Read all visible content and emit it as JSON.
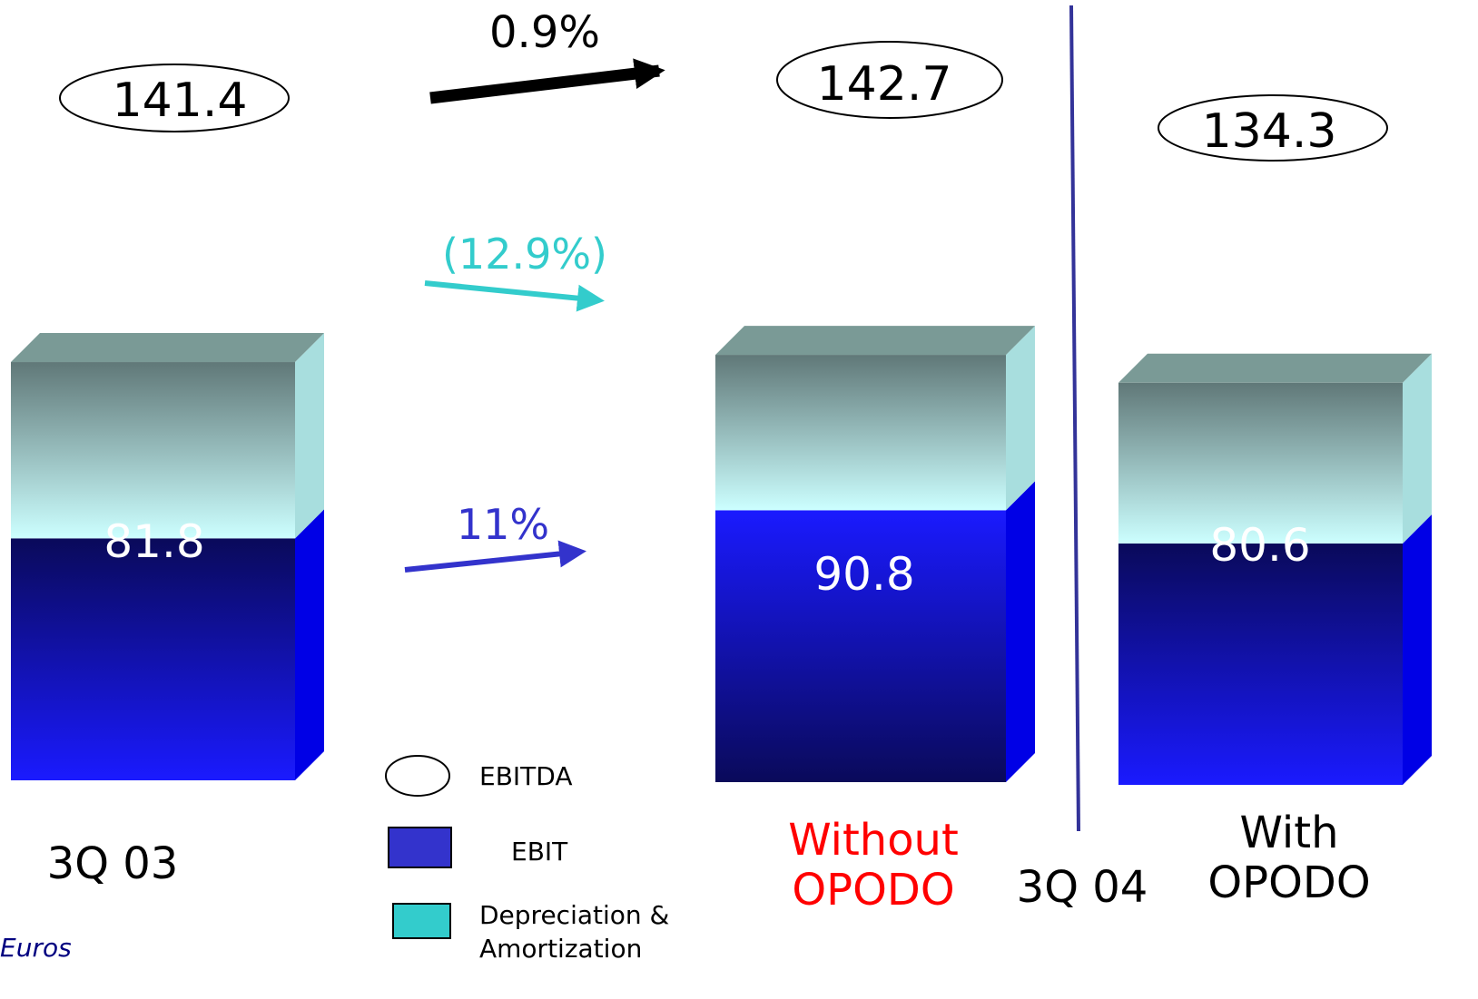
{
  "chart_data": {
    "type": "bar",
    "stacked": true,
    "style": "3d",
    "categories": [
      "3Q 03",
      "3Q 04 Without OPODO",
      "3Q 04 With OPODO"
    ],
    "category_labels": {
      "q03": "3Q 03",
      "q04": "3Q 04",
      "without": [
        "Without",
        "OPODO"
      ],
      "with": [
        "With",
        "OPODO"
      ]
    },
    "series": [
      {
        "name": "EBIT",
        "values": [
          81.8,
          90.8,
          80.6
        ]
      },
      {
        "name": "Depreciation & Amortization",
        "values": [
          59.6,
          51.9,
          53.7
        ]
      }
    ],
    "totals": {
      "name": "EBITDA",
      "values": [
        141.4,
        142.7,
        134.3
      ]
    },
    "total_labels": [
      "141.4",
      "142.7",
      "134.3"
    ],
    "ebit_labels": [
      "81.8",
      "90.8",
      "80.6"
    ],
    "da_labels": [
      "59.6",
      "51.9",
      "53.7"
    ],
    "changes": {
      "ebitda": "0.9%",
      "da": "(12.9%)",
      "ebit": "11%"
    },
    "legend": {
      "ebitda": "EBITDA",
      "ebit": "EBIT",
      "da_line1": "Depreciation &",
      "da_line2": "Amortization"
    },
    "unit_label": "Euros",
    "ylim": [
      0,
      160
    ],
    "colors": {
      "ebit_top": "#0a0a5a",
      "ebit_bottom": "#1a1aff",
      "ebit_side": "#0000e6",
      "da_top": "#607878",
      "da_bottom": "#ccffff",
      "da_side": "#a8dede",
      "cap": "#7a9a96",
      "legend_ebit": "#3333cc",
      "legend_da": "#33cccc",
      "arrow_ebitda": "#000000",
      "arrow_da": "#33cccc",
      "arrow_ebit": "#3333cc",
      "without_label": "#ff0000",
      "divider": "#333399",
      "unit_label": "#000080"
    }
  }
}
